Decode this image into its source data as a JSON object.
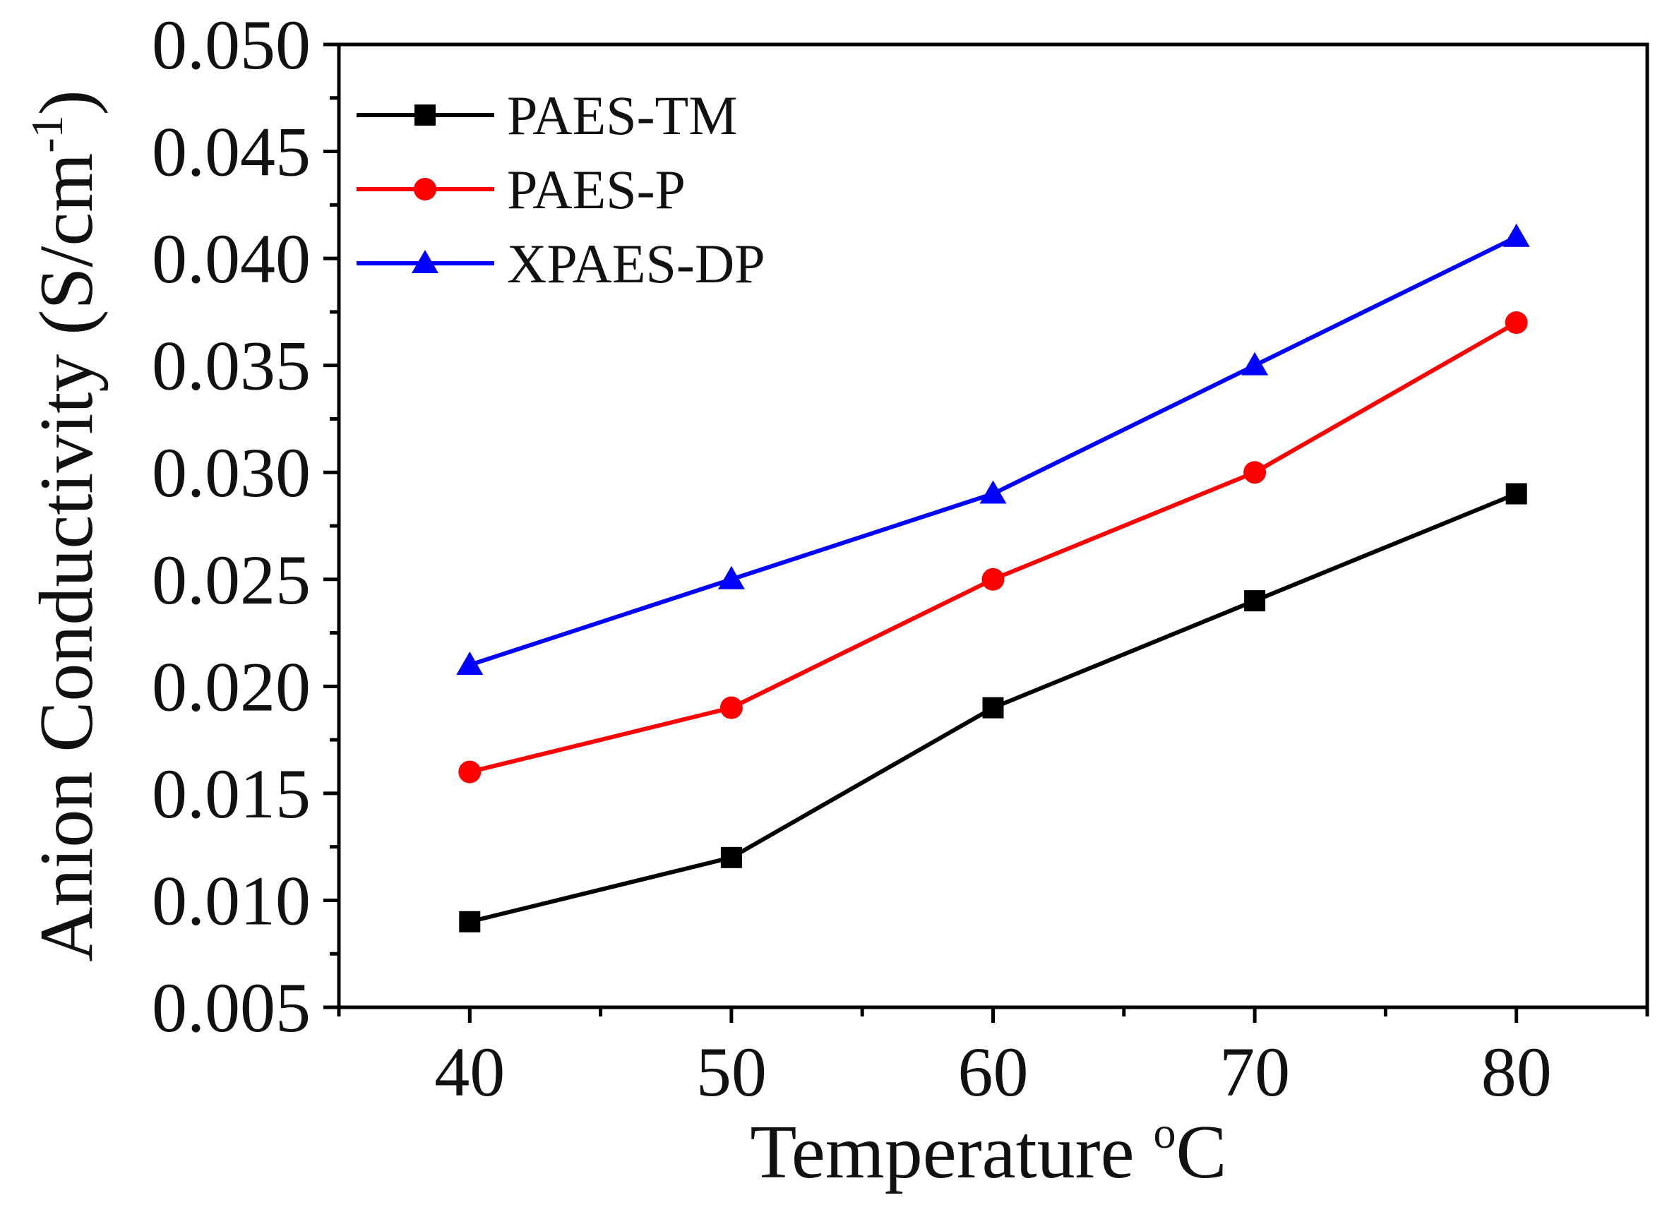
{
  "chart_data": {
    "type": "line",
    "x": [
      40,
      50,
      60,
      70,
      80
    ],
    "series": [
      {
        "name": "PAES-TM",
        "color": "#000000",
        "marker": "square",
        "values": [
          0.009,
          0.012,
          0.019,
          0.024,
          0.029
        ]
      },
      {
        "name": "PAES-P",
        "color": "#ff0000",
        "marker": "circle",
        "values": [
          0.016,
          0.019,
          0.025,
          0.03,
          0.037
        ]
      },
      {
        "name": "XPAES-DP",
        "color": "#0000ff",
        "marker": "triangle",
        "values": [
          0.021,
          0.025,
          0.029,
          0.035,
          0.041
        ]
      }
    ],
    "xlabel_main": "Temperature ",
    "xlabel_sup": "o",
    "xlabel_tail": "C",
    "ylabel_main": "Anion Conductivity (S/cm",
    "ylabel_sup": "-1",
    "ylabel_tail": ")",
    "xlim": [
      35,
      85
    ],
    "ylim": [
      0.005,
      0.05
    ],
    "xticks": [
      40,
      50,
      60,
      70,
      80
    ],
    "xtick_labels": [
      "40",
      "50",
      "60",
      "70",
      "80"
    ],
    "yticks": [
      0.005,
      0.01,
      0.015,
      0.02,
      0.025,
      0.03,
      0.035,
      0.04,
      0.045,
      0.05
    ],
    "ytick_labels": [
      "0.005",
      "0.010",
      "0.015",
      "0.020",
      "0.025",
      "0.030",
      "0.035",
      "0.040",
      "0.045",
      "0.050"
    ],
    "legend_position": "top-left",
    "grid": false
  }
}
